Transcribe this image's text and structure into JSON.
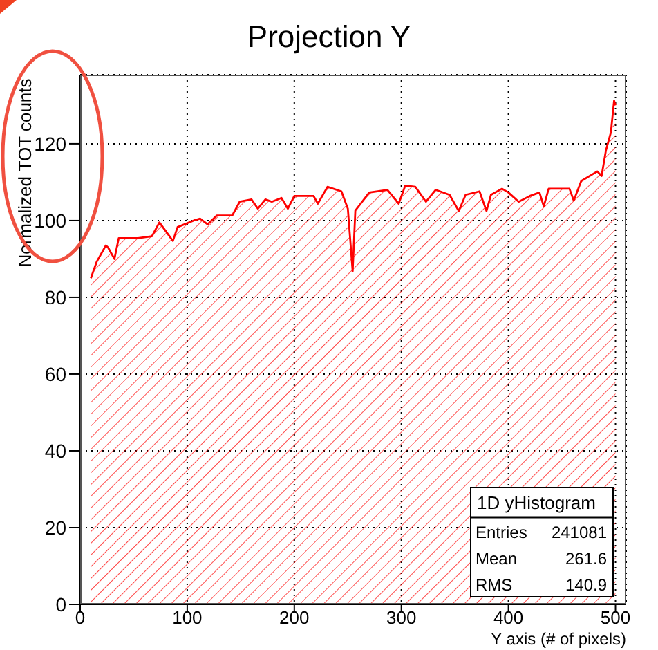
{
  "chart_data": {
    "type": "area",
    "title": "Projection Y",
    "xlabel": "Y axis (# of pixels)",
    "ylabel": "Normalized TOT counts",
    "x": [
      10,
      15.5,
      24,
      26,
      32,
      36,
      54,
      67,
      74,
      86.6,
      91,
      106,
      112,
      119,
      127.5,
      142,
      149,
      160,
      166,
      173,
      179,
      188,
      194,
      200,
      218,
      222,
      231,
      244,
      250,
      254.5,
      257,
      270,
      287,
      297.5,
      303.6,
      313,
      323,
      332,
      345,
      353.6,
      360,
      373,
      379.5,
      383.7,
      394,
      400,
      409.6,
      420,
      429,
      433,
      437.6,
      457,
      461,
      468,
      483,
      487,
      491,
      495.7,
      498.7,
      500
    ],
    "series": [
      {
        "color": "#ff0000",
        "values": [
          85,
          89.3,
          93.5,
          93,
          90,
          95.4,
          95.4,
          95.9,
          99.5,
          94.7,
          98.3,
          100,
          100.5,
          99,
          101.3,
          101.3,
          104.9,
          105.5,
          103.1,
          105.5,
          104.9,
          105.9,
          103.1,
          106.4,
          106.4,
          104.4,
          108.8,
          107.6,
          103.1,
          86.8,
          102.6,
          107.3,
          108,
          104.4,
          109.1,
          108.8,
          104.9,
          108,
          106.7,
          102.5,
          106.7,
          107.6,
          102.5,
          106.7,
          108.3,
          107.3,
          104.9,
          106.4,
          107.3,
          103.7,
          108.3,
          108.3,
          105.2,
          110.3,
          112.8,
          111.6,
          118.2,
          123,
          131.2,
          130
        ]
      }
    ],
    "xlim": [
      0,
      510
    ],
    "xticks": [
      0,
      100,
      200,
      300,
      400,
      500
    ],
    "ylim": [
      0,
      138
    ],
    "yticks": [
      0,
      20,
      40,
      60,
      80,
      100,
      120
    ],
    "grid": true,
    "annotations": [
      "1D yHistogram",
      "Entries 241081",
      "Mean 261.6",
      "RMS 140.9"
    ]
  }
}
